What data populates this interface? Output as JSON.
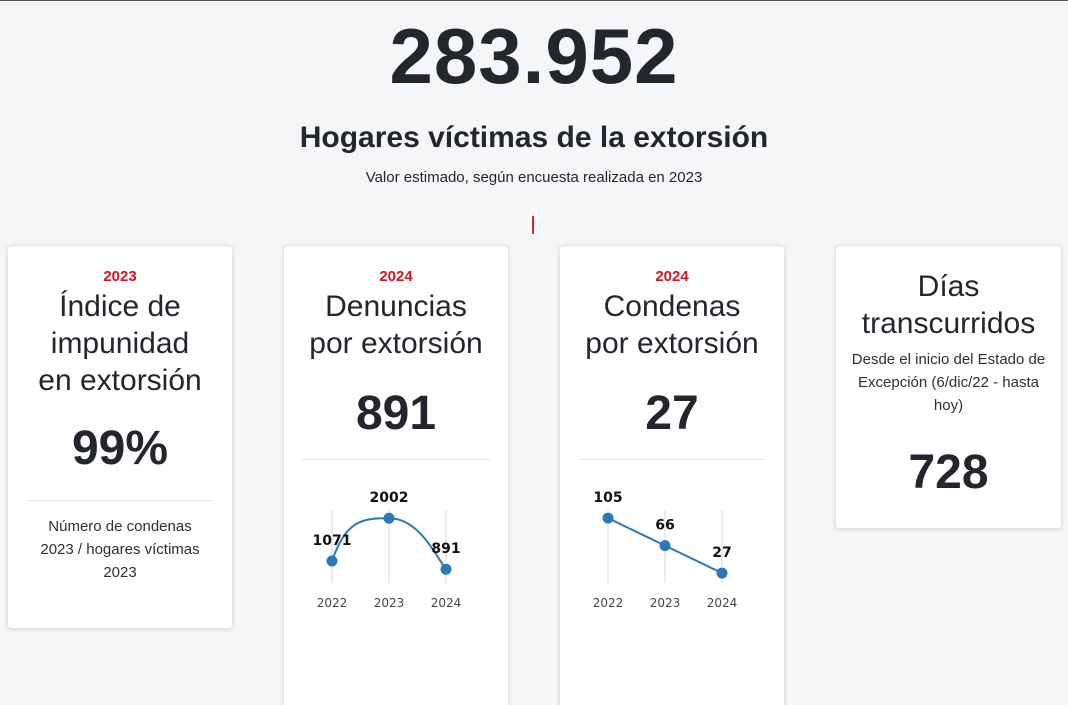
{
  "hero": {
    "number": "283.952",
    "title": "Hogares víctimas de la extorsión",
    "subtitle": "Valor estimado, según encuesta realizada en 2023"
  },
  "cards": [
    {
      "year": "2023",
      "title_lines": [
        "Índice de",
        "impunidad",
        "en extorsión"
      ],
      "value": "99%",
      "description": "Número de condenas 2023 / hogares víctimas 2023"
    },
    {
      "year": "2024",
      "title_lines": [
        "Denuncias",
        "por extorsión"
      ],
      "value": "891"
    },
    {
      "year": "2024",
      "title_lines": [
        "Condenas",
        "por extorsión"
      ],
      "value": "27"
    },
    {
      "title_lines": [
        "Días",
        "transcurridos"
      ],
      "description": "Desde el inicio del Estado de Excepción (6/dic/22 - hasta hoy)",
      "value": "728"
    }
  ],
  "colors": {
    "accent_red": "#d9121f",
    "line_blue": "#2a7ab8"
  },
  "chart_data": [
    {
      "type": "line",
      "categories": [
        "2022",
        "2023",
        "2024"
      ],
      "values": [
        1071,
        2002,
        891
      ],
      "labels": [
        "1071",
        "2002",
        "891"
      ],
      "smooth": true,
      "grid": "vertical",
      "ylim": [
        700,
        2050
      ]
    },
    {
      "type": "line",
      "categories": [
        "2022",
        "2023",
        "2024"
      ],
      "values": [
        105,
        66,
        27
      ],
      "labels": [
        "105",
        "66",
        "27"
      ],
      "smooth": false,
      "grid": "vertical",
      "ylim": [
        20,
        108
      ]
    }
  ]
}
